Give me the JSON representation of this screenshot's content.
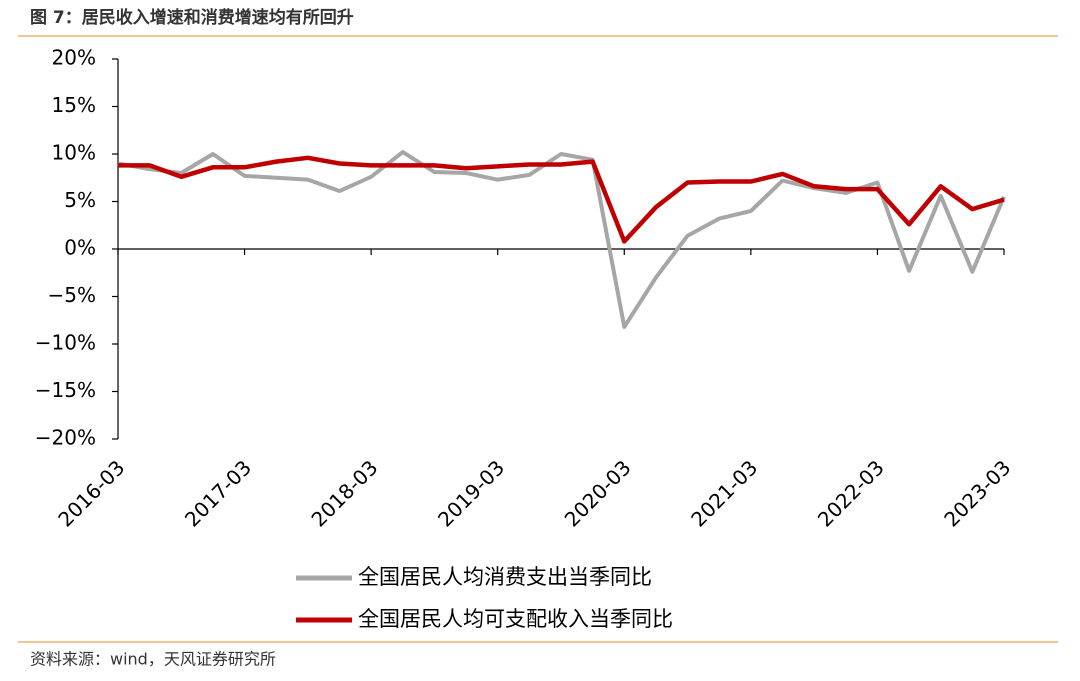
{
  "chart_data": {
    "type": "line",
    "title": "图 7：居民收入增速和消费增速均有所回升",
    "source": "资料来源：wind，天风证券研究所",
    "categories": [
      "2016-03",
      null,
      null,
      null,
      "2017-03",
      null,
      null,
      null,
      "2018-03",
      null,
      null,
      null,
      "2019-03",
      null,
      null,
      null,
      "2020-03",
      null,
      null,
      null,
      "2021-03",
      null,
      null,
      null,
      "2022-03",
      null,
      null,
      null,
      "2023-03"
    ],
    "series": [
      {
        "name": "全国居民人均消费支出当季同比",
        "color": "#a6a6a6",
        "values": [
          9.0,
          8.4,
          8.0,
          10.0,
          7.7,
          7.5,
          7.3,
          6.1,
          7.6,
          10.2,
          8.1,
          8.0,
          7.3,
          7.8,
          10.0,
          9.4,
          -8.2,
          -3.0,
          1.4,
          3.2,
          4.0,
          7.2,
          6.4,
          5.9,
          7.0,
          -2.3,
          5.6,
          -2.4,
          5.5
        ]
      },
      {
        "name": "全国居民人均可支配收入当季同比",
        "color": "#c00000",
        "values": [
          8.8,
          8.8,
          7.6,
          8.6,
          8.6,
          9.2,
          9.6,
          9.0,
          8.8,
          8.8,
          8.8,
          8.5,
          8.7,
          8.9,
          8.9,
          9.2,
          0.8,
          4.4,
          7.0,
          7.1,
          7.1,
          7.9,
          6.6,
          6.3,
          6.3,
          2.6,
          6.6,
          4.2,
          5.2
        ]
      }
    ],
    "ylim": [
      -20,
      20
    ],
    "yticks": [
      {
        "value": -20,
        "label": "−20%"
      },
      {
        "value": -15,
        "label": "−15%"
      },
      {
        "value": -10,
        "label": "−10%"
      },
      {
        "value": -5,
        "label": "−5%"
      },
      {
        "value": 0,
        "label": "0%"
      },
      {
        "value": 5,
        "label": "5%"
      },
      {
        "value": 10,
        "label": "10%"
      },
      {
        "value": 15,
        "label": "15%"
      },
      {
        "value": 20,
        "label": "20%"
      }
    ]
  }
}
